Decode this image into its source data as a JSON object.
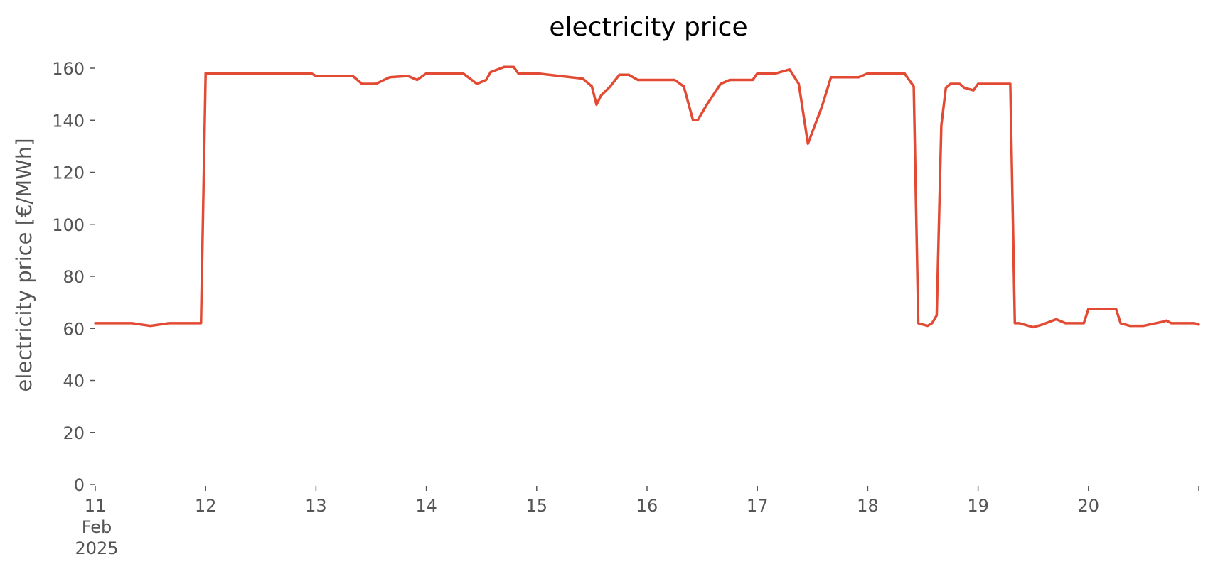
{
  "chart_data": {
    "type": "line",
    "title": "electricity price",
    "xlabel": "",
    "ylabel": "electricity price [€/MWh]",
    "ylim": [
      0,
      160
    ],
    "y_ticks": [
      0,
      20,
      40,
      60,
      80,
      100,
      120,
      140,
      160
    ],
    "xlim": [
      "2025-02-11",
      "2025-02-21"
    ],
    "x_ticks": [
      {
        "date": "2025-02-11",
        "label": "11",
        "sublabels": [
          "Feb",
          "2025"
        ]
      },
      {
        "date": "2025-02-12",
        "label": "12"
      },
      {
        "date": "2025-02-13",
        "label": "13"
      },
      {
        "date": "2025-02-14",
        "label": "14"
      },
      {
        "date": "2025-02-15",
        "label": "15"
      },
      {
        "date": "2025-02-16",
        "label": "16"
      },
      {
        "date": "2025-02-17",
        "label": "17"
      },
      {
        "date": "2025-02-18",
        "label": "18"
      },
      {
        "date": "2025-02-19",
        "label": "19"
      },
      {
        "date": "2025-02-20",
        "label": "20"
      },
      {
        "date": "2025-02-21",
        "label": ""
      }
    ],
    "grid": false,
    "series": [
      {
        "color": "#e24a33",
        "points": [
          [
            "2025-02-11 00:00",
            62
          ],
          [
            "2025-02-11 08:00",
            62
          ],
          [
            "2025-02-11 10:00",
            61.5
          ],
          [
            "2025-02-11 12:00",
            61
          ],
          [
            "2025-02-11 14:00",
            61.5
          ],
          [
            "2025-02-11 16:00",
            62
          ],
          [
            "2025-02-11 23:00",
            62
          ],
          [
            "2025-02-12 00:00",
            158
          ],
          [
            "2025-02-12 23:00",
            158
          ],
          [
            "2025-02-13 00:00",
            157
          ],
          [
            "2025-02-13 08:00",
            157
          ],
          [
            "2025-02-13 09:00",
            155.5
          ],
          [
            "2025-02-13 10:00",
            154
          ],
          [
            "2025-02-13 13:00",
            154
          ],
          [
            "2025-02-13 16:00",
            156.5
          ],
          [
            "2025-02-13 20:00",
            157
          ],
          [
            "2025-02-13 22:00",
            155.5
          ],
          [
            "2025-02-14 00:00",
            158
          ],
          [
            "2025-02-14 08:00",
            158
          ],
          [
            "2025-02-14 11:00",
            154
          ],
          [
            "2025-02-14 13:00",
            155.5
          ],
          [
            "2025-02-14 14:00",
            158.5
          ],
          [
            "2025-02-14 17:00",
            160.5
          ],
          [
            "2025-02-14 19:00",
            160.5
          ],
          [
            "2025-02-14 20:00",
            158
          ],
          [
            "2025-02-15 00:00",
            158
          ],
          [
            "2025-02-15 10:00",
            156
          ],
          [
            "2025-02-15 12:00",
            153
          ],
          [
            "2025-02-15 13:00",
            146
          ],
          [
            "2025-02-15 14:00",
            149.5
          ],
          [
            "2025-02-15 16:00",
            153
          ],
          [
            "2025-02-15 18:00",
            157.5
          ],
          [
            "2025-02-15 20:00",
            157.5
          ],
          [
            "2025-02-15 22:00",
            155.5
          ],
          [
            "2025-02-16 00:00",
            155.5
          ],
          [
            "2025-02-16 06:00",
            155.5
          ],
          [
            "2025-02-16 08:00",
            153
          ],
          [
            "2025-02-16 10:00",
            140
          ],
          [
            "2025-02-16 11:00",
            140
          ],
          [
            "2025-02-16 13:00",
            146
          ],
          [
            "2025-02-16 16:00",
            154
          ],
          [
            "2025-02-16 18:00",
            155.5
          ],
          [
            "2025-02-16 23:00",
            155.5
          ],
          [
            "2025-02-17 00:00",
            158
          ],
          [
            "2025-02-17 04:00",
            158
          ],
          [
            "2025-02-17 07:00",
            159.5
          ],
          [
            "2025-02-17 09:00",
            154
          ],
          [
            "2025-02-17 11:00",
            131
          ],
          [
            "2025-02-17 14:00",
            145
          ],
          [
            "2025-02-17 16:00",
            156.5
          ],
          [
            "2025-02-17 22:00",
            156.5
          ],
          [
            "2025-02-18 00:00",
            158
          ],
          [
            "2025-02-18 08:00",
            158
          ],
          [
            "2025-02-18 10:00",
            153
          ],
          [
            "2025-02-18 11:00",
            62
          ],
          [
            "2025-02-18 13:00",
            61
          ],
          [
            "2025-02-18 14:00",
            62
          ],
          [
            "2025-02-18 15:00",
            65
          ],
          [
            "2025-02-18 16:00",
            138
          ],
          [
            "2025-02-18 17:00",
            152.5
          ],
          [
            "2025-02-18 18:00",
            154
          ],
          [
            "2025-02-18 20:00",
            154
          ],
          [
            "2025-02-18 21:00",
            152.5
          ],
          [
            "2025-02-18 23:00",
            151.5
          ],
          [
            "2025-02-19 00:00",
            154
          ],
          [
            "2025-02-19 07:00",
            154
          ],
          [
            "2025-02-19 08:00",
            62
          ],
          [
            "2025-02-19 09:00",
            62
          ],
          [
            "2025-02-19 12:00",
            60.5
          ],
          [
            "2025-02-19 14:00",
            61.5
          ],
          [
            "2025-02-19 17:00",
            63.5
          ],
          [
            "2025-02-19 19:00",
            62
          ],
          [
            "2025-02-19 23:00",
            62
          ],
          [
            "2025-02-20 00:00",
            67.5
          ],
          [
            "2025-02-20 06:00",
            67.5
          ],
          [
            "2025-02-20 07:00",
            62
          ],
          [
            "2025-02-20 09:00",
            61
          ],
          [
            "2025-02-20 12:00",
            61
          ],
          [
            "2025-02-20 16:00",
            62.5
          ],
          [
            "2025-02-20 17:00",
            63
          ],
          [
            "2025-02-20 18:00",
            62
          ],
          [
            "2025-02-20 23:00",
            62
          ],
          [
            "2025-02-21 00:00",
            61.5
          ]
        ]
      }
    ]
  }
}
